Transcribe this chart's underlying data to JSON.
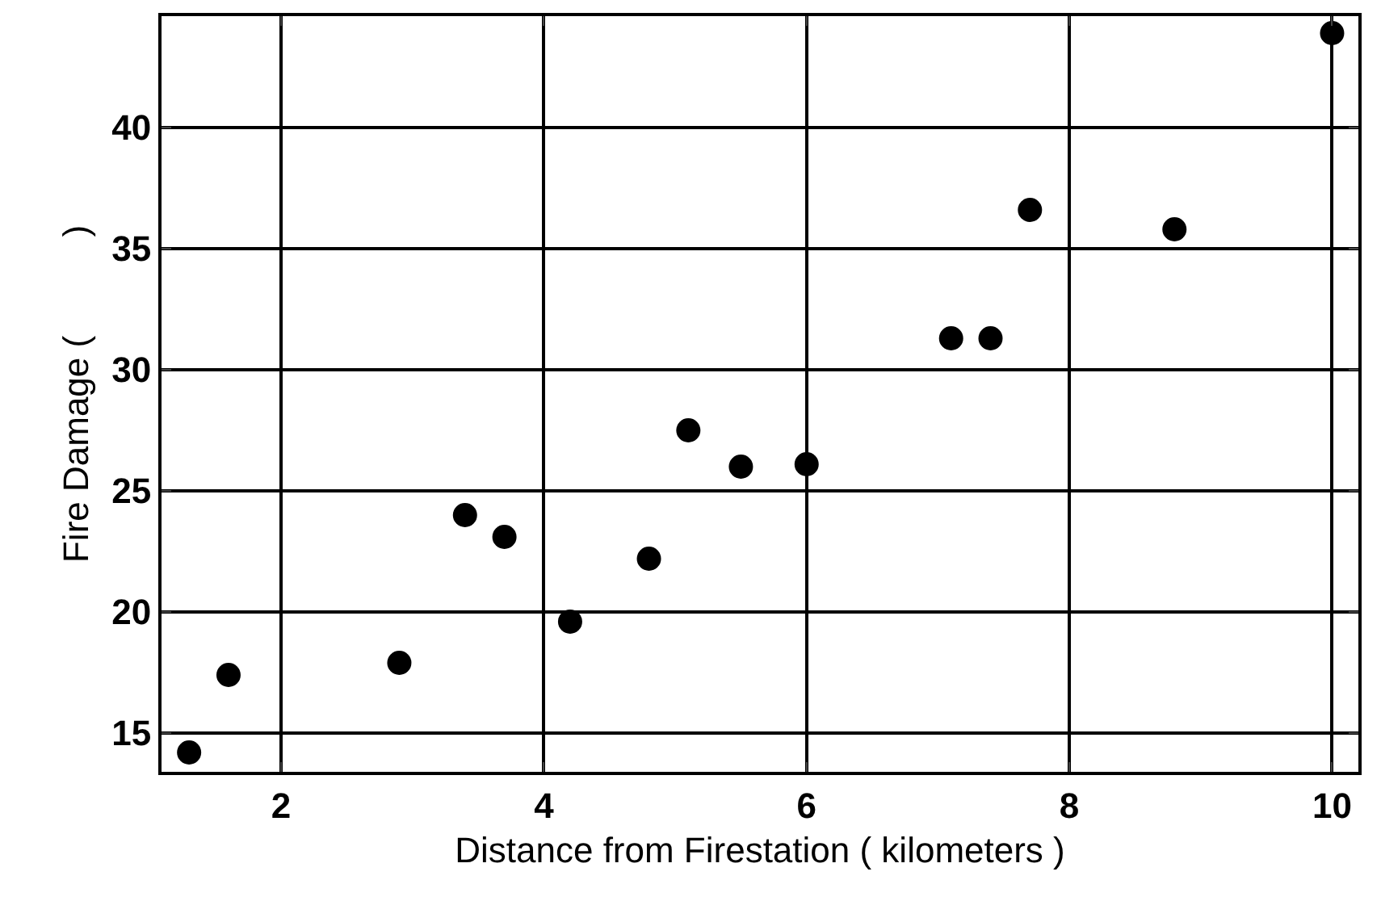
{
  "chart_data": {
    "type": "scatter",
    "xlabel": "Distance from Firestation ( kilometers )",
    "ylabel": "Fire Damage (          )",
    "x": [
      1.3,
      1.6,
      2.9,
      3.4,
      3.7,
      4.2,
      4.8,
      5.1,
      5.5,
      6.0,
      7.1,
      7.4,
      7.7,
      8.8,
      10.0
    ],
    "series": [
      {
        "color": "#000000",
        "values": [
          14.2,
          17.4,
          17.9,
          24.0,
          23.1,
          19.6,
          22.2,
          27.5,
          26.0,
          26.1,
          31.3,
          31.3,
          36.6,
          35.8,
          43.9
        ]
      }
    ],
    "xlim": [
      1.09,
      10.2
    ],
    "ylim": [
      13.4,
      44.6
    ],
    "xticks": [
      2,
      4,
      6,
      8,
      10
    ],
    "yticks": [
      15,
      20,
      25,
      30,
      35,
      40
    ],
    "grid": true,
    "marker": "circle"
  }
}
